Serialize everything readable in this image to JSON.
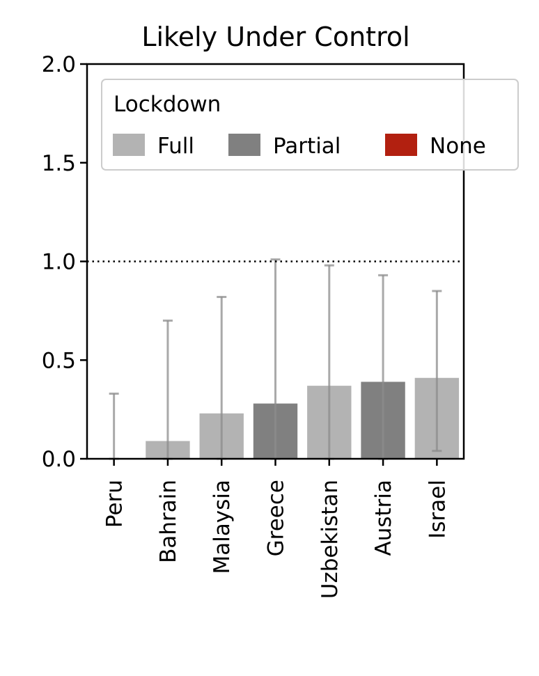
{
  "chart_data": {
    "type": "bar",
    "title": "Likely Under Control",
    "xlabel": "",
    "ylabel": "",
    "ylim": [
      0,
      2.0
    ],
    "yticks": [
      "0.0",
      "0.5",
      "1.0",
      "1.5",
      "2.0"
    ],
    "reference_line": 1.0,
    "grid": false,
    "categories": [
      "Peru",
      "Bahrain",
      "Malaysia",
      "Greece",
      "Uzbekistan",
      "Austria",
      "Israel"
    ],
    "values": [
      0.0,
      0.09,
      0.23,
      0.28,
      0.37,
      0.39,
      0.41
    ],
    "error_low": [
      0.0,
      0.0,
      0.0,
      0.0,
      0.0,
      0.0,
      0.04
    ],
    "error_high": [
      0.33,
      0.7,
      0.82,
      1.01,
      0.98,
      0.93,
      0.85
    ],
    "lockdown": [
      "Full",
      "Full",
      "Full",
      "Partial",
      "Full",
      "Partial",
      "Full"
    ],
    "legend": {
      "title": "Lockdown",
      "placement": "top-right",
      "entries": [
        {
          "label": "Full",
          "color": "#b3b3b3"
        },
        {
          "label": "Partial",
          "color": "#808080"
        },
        {
          "label": "None",
          "color": "#b22010"
        }
      ]
    },
    "error_color": "#8c8c8c"
  }
}
